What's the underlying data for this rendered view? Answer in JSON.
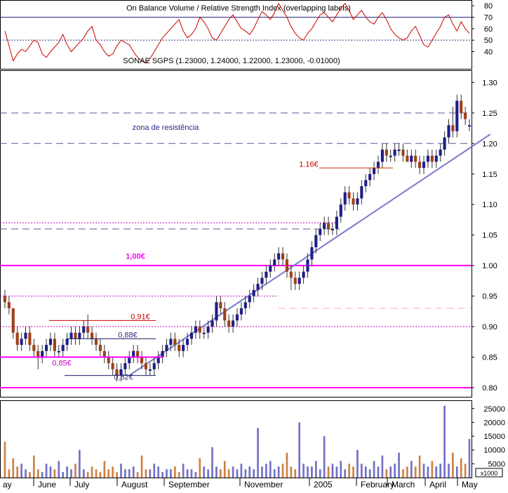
{
  "chart_data": [
    {
      "panel": "rsi",
      "type": "line",
      "title": "On Balance Volume / Relative Strength Index (overlapping labels)",
      "title_text": "On Balance Volume / Relative Strength Index (overlapping labels)",
      "ylim": [
        25,
        85
      ],
      "yticks": [
        40,
        50,
        60,
        70,
        80
      ],
      "hlines": [
        {
          "value": 70,
          "style": "solid"
        },
        {
          "value": 50,
          "style": "dotted"
        }
      ],
      "series": [
        {
          "name": "RSI",
          "color": "#cc0000",
          "values": [
            58,
            45,
            32,
            38,
            42,
            40,
            45,
            50,
            48,
            38,
            35,
            40,
            44,
            48,
            55,
            46,
            40,
            44,
            48,
            52,
            58,
            62,
            50,
            46,
            40,
            36,
            38,
            45,
            50,
            48,
            46,
            40,
            35,
            32,
            30,
            34,
            40,
            46,
            52,
            56,
            60,
            64,
            68,
            58,
            52,
            55,
            60,
            70,
            66,
            60,
            52,
            50,
            56,
            62,
            68,
            72,
            66,
            60,
            58,
            55,
            60,
            68,
            75,
            72,
            68,
            74,
            82,
            76,
            70,
            62,
            56,
            52,
            50,
            56,
            60,
            66,
            72,
            74,
            70,
            66,
            72,
            78,
            82,
            76,
            68,
            72,
            76,
            70,
            66,
            64,
            70,
            74,
            68,
            60,
            55,
            52,
            50,
            52,
            58,
            62,
            54,
            46,
            44,
            50,
            56,
            62,
            70,
            72,
            64,
            58,
            66,
            60,
            56
          ]
        }
      ]
    },
    {
      "panel": "price",
      "type": "candlestick",
      "title": "SONAE SGPS (1.23000, 1.24000, 1.22000, 1.23000, -0.01000)",
      "ylim": [
        0.785,
        1.32
      ],
      "yticks": [
        0.8,
        0.85,
        0.9,
        0.95,
        1.0,
        1.05,
        1.1,
        1.15,
        1.2,
        1.25,
        1.3
      ],
      "ytick_labels": [
        "0.80",
        "0.85",
        "0.90",
        "0.95",
        "1.00",
        "1.05",
        "1.10",
        "1.15",
        "1.20",
        "1.25",
        "1.30"
      ],
      "x_labels": [
        "ay",
        "June",
        "July",
        "August",
        "September",
        "November",
        "2005",
        "February",
        "March",
        "April",
        "May"
      ],
      "ohlc": [
        [
          0.95,
          0.96,
          0.93,
          0.94
        ],
        [
          0.94,
          0.95,
          0.92,
          0.93
        ],
        [
          0.93,
          0.93,
          0.88,
          0.89
        ],
        [
          0.89,
          0.9,
          0.86,
          0.87
        ],
        [
          0.87,
          0.89,
          0.86,
          0.88
        ],
        [
          0.88,
          0.9,
          0.87,
          0.89
        ],
        [
          0.89,
          0.9,
          0.86,
          0.87
        ],
        [
          0.87,
          0.88,
          0.85,
          0.86
        ],
        [
          0.86,
          0.87,
          0.83,
          0.85
        ],
        [
          0.85,
          0.87,
          0.84,
          0.86
        ],
        [
          0.86,
          0.88,
          0.85,
          0.87
        ],
        [
          0.87,
          0.89,
          0.86,
          0.88
        ],
        [
          0.88,
          0.89,
          0.85,
          0.86
        ],
        [
          0.86,
          0.87,
          0.85,
          0.86
        ],
        [
          0.86,
          0.88,
          0.85,
          0.87
        ],
        [
          0.87,
          0.89,
          0.86,
          0.88
        ],
        [
          0.88,
          0.9,
          0.87,
          0.89
        ],
        [
          0.89,
          0.9,
          0.87,
          0.88
        ],
        [
          0.88,
          0.9,
          0.87,
          0.89
        ],
        [
          0.89,
          0.91,
          0.88,
          0.9
        ],
        [
          0.9,
          0.92,
          0.88,
          0.89
        ],
        [
          0.89,
          0.9,
          0.87,
          0.88
        ],
        [
          0.88,
          0.89,
          0.86,
          0.87
        ],
        [
          0.87,
          0.88,
          0.85,
          0.86
        ],
        [
          0.86,
          0.87,
          0.84,
          0.85
        ],
        [
          0.85,
          0.86,
          0.83,
          0.84
        ],
        [
          0.84,
          0.85,
          0.82,
          0.83
        ],
        [
          0.83,
          0.84,
          0.81,
          0.82
        ],
        [
          0.82,
          0.84,
          0.81,
          0.83
        ],
        [
          0.83,
          0.85,
          0.82,
          0.84
        ],
        [
          0.84,
          0.86,
          0.83,
          0.85
        ],
        [
          0.85,
          0.87,
          0.84,
          0.86
        ],
        [
          0.86,
          0.87,
          0.84,
          0.85
        ],
        [
          0.85,
          0.86,
          0.83,
          0.84
        ],
        [
          0.84,
          0.85,
          0.82,
          0.83
        ],
        [
          0.83,
          0.84,
          0.82,
          0.83
        ],
        [
          0.83,
          0.85,
          0.82,
          0.84
        ],
        [
          0.84,
          0.86,
          0.83,
          0.85
        ],
        [
          0.85,
          0.87,
          0.84,
          0.86
        ],
        [
          0.86,
          0.88,
          0.85,
          0.87
        ],
        [
          0.87,
          0.89,
          0.86,
          0.88
        ],
        [
          0.88,
          0.89,
          0.86,
          0.87
        ],
        [
          0.87,
          0.88,
          0.85,
          0.86
        ],
        [
          0.86,
          0.88,
          0.85,
          0.87
        ],
        [
          0.87,
          0.89,
          0.86,
          0.88
        ],
        [
          0.88,
          0.9,
          0.87,
          0.89
        ],
        [
          0.89,
          0.91,
          0.88,
          0.9
        ],
        [
          0.9,
          0.91,
          0.88,
          0.89
        ],
        [
          0.89,
          0.9,
          0.88,
          0.89
        ],
        [
          0.89,
          0.91,
          0.88,
          0.9
        ],
        [
          0.9,
          0.92,
          0.89,
          0.91
        ],
        [
          0.91,
          0.95,
          0.9,
          0.94
        ],
        [
          0.94,
          0.95,
          0.92,
          0.93
        ],
        [
          0.93,
          0.94,
          0.9,
          0.91
        ],
        [
          0.91,
          0.92,
          0.89,
          0.9
        ],
        [
          0.9,
          0.92,
          0.89,
          0.91
        ],
        [
          0.91,
          0.93,
          0.9,
          0.92
        ],
        [
          0.92,
          0.94,
          0.91,
          0.93
        ],
        [
          0.93,
          0.95,
          0.92,
          0.94
        ],
        [
          0.94,
          0.96,
          0.93,
          0.95
        ],
        [
          0.95,
          0.97,
          0.94,
          0.96
        ],
        [
          0.96,
          0.98,
          0.95,
          0.97
        ],
        [
          0.97,
          0.99,
          0.96,
          0.98
        ],
        [
          0.98,
          1.0,
          0.97,
          0.99
        ],
        [
          0.99,
          1.01,
          0.98,
          1.0
        ],
        [
          1.0,
          1.02,
          0.99,
          1.01
        ],
        [
          1.01,
          1.03,
          1.0,
          1.02
        ],
        [
          1.02,
          1.03,
          1.0,
          1.01
        ],
        [
          1.01,
          1.02,
          0.98,
          0.99
        ],
        [
          0.99,
          1.0,
          0.96,
          0.98
        ],
        [
          0.98,
          0.99,
          0.96,
          0.97
        ],
        [
          0.97,
          0.99,
          0.96,
          0.98
        ],
        [
          0.98,
          1.0,
          0.97,
          0.99
        ],
        [
          0.99,
          1.02,
          0.98,
          1.01
        ],
        [
          1.01,
          1.04,
          1.0,
          1.03
        ],
        [
          1.03,
          1.06,
          1.02,
          1.05
        ],
        [
          1.05,
          1.07,
          1.04,
          1.06
        ],
        [
          1.06,
          1.08,
          1.05,
          1.07
        ],
        [
          1.07,
          1.08,
          1.05,
          1.06
        ],
        [
          1.06,
          1.07,
          1.05,
          1.06
        ],
        [
          1.06,
          1.09,
          1.05,
          1.08
        ],
        [
          1.08,
          1.11,
          1.07,
          1.1
        ],
        [
          1.1,
          1.13,
          1.09,
          1.12
        ],
        [
          1.12,
          1.13,
          1.1,
          1.11
        ],
        [
          1.11,
          1.12,
          1.09,
          1.1
        ],
        [
          1.1,
          1.12,
          1.09,
          1.11
        ],
        [
          1.11,
          1.14,
          1.1,
          1.13
        ],
        [
          1.13,
          1.15,
          1.12,
          1.14
        ],
        [
          1.14,
          1.16,
          1.13,
          1.15
        ],
        [
          1.15,
          1.17,
          1.14,
          1.16
        ],
        [
          1.16,
          1.18,
          1.15,
          1.17
        ],
        [
          1.17,
          1.2,
          1.16,
          1.19
        ],
        [
          1.19,
          1.2,
          1.17,
          1.18
        ],
        [
          1.18,
          1.19,
          1.17,
          1.18
        ],
        [
          1.18,
          1.2,
          1.17,
          1.19
        ],
        [
          1.19,
          1.2,
          1.18,
          1.19
        ],
        [
          1.19,
          1.2,
          1.17,
          1.18
        ],
        [
          1.18,
          1.19,
          1.17,
          1.17
        ],
        [
          1.17,
          1.19,
          1.16,
          1.18
        ],
        [
          1.18,
          1.19,
          1.16,
          1.17
        ],
        [
          1.17,
          1.18,
          1.15,
          1.16
        ],
        [
          1.16,
          1.18,
          1.15,
          1.17
        ],
        [
          1.17,
          1.19,
          1.16,
          1.18
        ],
        [
          1.18,
          1.19,
          1.16,
          1.17
        ],
        [
          1.17,
          1.19,
          1.16,
          1.18
        ],
        [
          1.18,
          1.2,
          1.17,
          1.19
        ],
        [
          1.19,
          1.22,
          1.18,
          1.21
        ],
        [
          1.21,
          1.24,
          1.2,
          1.23
        ],
        [
          1.23,
          1.26,
          1.21,
          1.22
        ],
        [
          1.22,
          1.28,
          1.21,
          1.27
        ],
        [
          1.27,
          1.28,
          1.24,
          1.25
        ],
        [
          1.25,
          1.26,
          1.23,
          1.24
        ],
        [
          1.23,
          1.24,
          1.22,
          1.23
        ]
      ],
      "hlines": [
        {
          "value": 1.25,
          "style": "dashed",
          "color": "#5a5a9a"
        },
        {
          "value": 1.2,
          "style": "dashed",
          "color": "#5a5a9a"
        },
        {
          "value": 1.07,
          "style": "dotted",
          "color": "#cc00cc",
          "from": 0,
          "to": 0.72
        },
        {
          "value": 1.06,
          "style": "dashed",
          "color": "#5a5a9a",
          "from": 0,
          "to": 0.72
        },
        {
          "value": 1.0,
          "style": "solid-thick",
          "color": "#ff00ff"
        },
        {
          "value": 0.95,
          "style": "dotted",
          "color": "#cc00cc",
          "from": 0,
          "to": 0.59
        },
        {
          "value": 0.93,
          "style": "dashed",
          "color": "#ffaaaa",
          "from": 0.59,
          "to": 1
        },
        {
          "value": 0.9,
          "style": "dotted",
          "color": "#cc00cc"
        },
        {
          "value": 0.8,
          "style": "solid-thick",
          "color": "#ff00ff"
        }
      ],
      "annotations": [
        {
          "text": "zona de resistência",
          "y": 1.222,
          "color": "#2a2a8a"
        },
        {
          "text": "1.16€",
          "y": 1.162,
          "color": "#cc0000"
        },
        {
          "text": "1,00€",
          "y": 1.011,
          "color": "#ff00ff"
        },
        {
          "text": "0,91€",
          "y": 0.912,
          "color": "#cc0000"
        },
        {
          "text": "0,88€",
          "y": 0.882,
          "color": "#2a2a8a"
        },
        {
          "text": "0,85€",
          "y": 0.836,
          "color": "#cc00cc"
        },
        {
          "text": "0,82€",
          "y": 0.813,
          "color": "#2a2a8a"
        }
      ],
      "trendline": {
        "from": [
          30,
          0.82
        ],
        "to": [
          116,
          1.215
        ],
        "color": "#7a7ac8"
      }
    },
    {
      "panel": "volume",
      "type": "bar",
      "ylim": [
        0,
        28000
      ],
      "yticks": [
        5000,
        10000,
        15000,
        20000,
        25000
      ],
      "ytick_labels": [
        "5000",
        "10000",
        "15000",
        "20000",
        "25000"
      ],
      "unit_label": "x1000",
      "values": [
        13000,
        3000,
        7000,
        4000,
        5000,
        3000,
        2000,
        8000,
        3000,
        2000,
        5000,
        4000,
        3000,
        6000,
        2000,
        4000,
        3000,
        5000,
        10000,
        3000,
        2000,
        4000,
        3000,
        2000,
        6000,
        3000,
        4000,
        2000,
        5000,
        3000,
        3000,
        4000,
        2000,
        8000,
        3000,
        3000,
        5000,
        4000,
        2000,
        3000,
        3000,
        4000,
        2000,
        5000,
        3000,
        3000,
        2000,
        7000,
        4000,
        3000,
        11000,
        4000,
        3000,
        6000,
        3000,
        4000,
        3000,
        5000,
        3000,
        4000,
        3000,
        18000,
        4000,
        5000,
        6000,
        3000,
        4000,
        5000,
        9000,
        4000,
        3000,
        20000,
        5000,
        4000,
        4000,
        6000,
        3000,
        15000,
        4000,
        5000,
        4000,
        6000,
        3000,
        5000,
        4000,
        10000,
        5000,
        4000,
        3000,
        6000,
        4000,
        8000,
        3000,
        4000,
        5000,
        9000,
        3000,
        4000,
        6000,
        4000,
        8000,
        5000,
        4000,
        6000,
        4000,
        5000,
        26000,
        5000,
        9000,
        4000,
        7000,
        5000,
        14000
      ],
      "up_color": "#7070c8",
      "down_color": "#d08040"
    }
  ]
}
